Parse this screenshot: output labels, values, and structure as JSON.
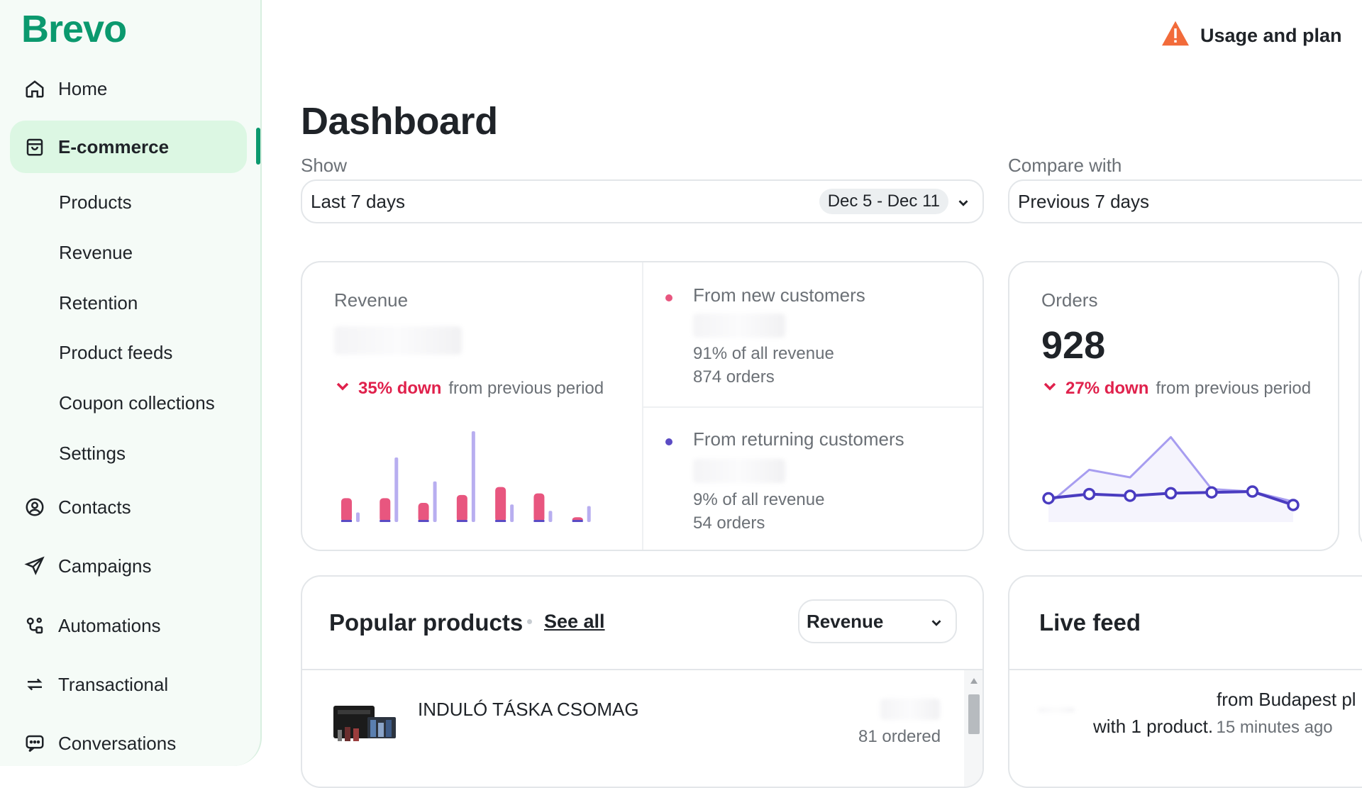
{
  "brand": {
    "logo_text": "Brevo",
    "accent": "#0b996e"
  },
  "sidebar": {
    "items": [
      {
        "label": "Home",
        "icon": "home-icon"
      },
      {
        "label": "E-commerce",
        "icon": "shopping-bag-icon",
        "active": true
      },
      {
        "label": "Contacts",
        "icon": "user-circle-icon"
      },
      {
        "label": "Campaigns",
        "icon": "send-icon"
      },
      {
        "label": "Automations",
        "icon": "automation-icon"
      },
      {
        "label": "Transactional",
        "icon": "swap-arrows-icon"
      },
      {
        "label": "Conversations",
        "icon": "chat-icon"
      }
    ],
    "subitems": [
      "Products",
      "Revenue",
      "Retention",
      "Product feeds",
      "Coupon collections",
      "Settings"
    ]
  },
  "header": {
    "usage_label": "Usage and plan",
    "warning_color": "#f26b3a"
  },
  "page": {
    "title": "Dashboard"
  },
  "filters": {
    "show_label": "Show",
    "show_value": "Last 7 days",
    "date_range": "Dec 5 - Dec 11",
    "compare_label": "Compare with",
    "compare_value": "Previous 7 days"
  },
  "revenue_card": {
    "title": "Revenue",
    "change": "35% down",
    "change_suffix": "from previous period",
    "new_customers": {
      "label": "From new customers",
      "share": "91% of all revenue",
      "orders": "874 orders",
      "color": "#e8567f"
    },
    "returning_customers": {
      "label": "From returning customers",
      "share": "9% of all revenue",
      "orders": "54 orders",
      "color": "#5b4bc4"
    }
  },
  "orders_card": {
    "title": "Orders",
    "value": "928",
    "change": "27% down",
    "change_suffix": "from previous period"
  },
  "chart_data": [
    {
      "type": "bar",
      "categories": [
        "1",
        "2",
        "3",
        "4",
        "5",
        "6",
        "7"
      ],
      "series": [
        {
          "values": [
            30,
            30,
            24,
            34,
            44,
            36,
            6
          ],
          "color": "#e8567f"
        },
        {
          "values": [
            12,
            81,
            51,
            114,
            22,
            14,
            20
          ],
          "color": "#b8aef0"
        }
      ],
      "ylim": [
        0,
        114
      ]
    },
    {
      "type": "line",
      "x": [
        1,
        2,
        3,
        4,
        5,
        6,
        7
      ],
      "series": [
        {
          "values": [
            25,
            30,
            28,
            31,
            32,
            33,
            17
          ],
          "color": "#4a3cc0"
        },
        {
          "values": [
            18,
            59,
            50,
            98,
            36,
            33,
            21
          ],
          "color": "#a79df0"
        }
      ],
      "ylim": [
        0,
        100
      ]
    }
  ],
  "popular_products": {
    "title": "Popular products",
    "see_all": "See all",
    "metric": "Revenue",
    "items": [
      {
        "name": "INDULÓ TÁSKA CSOMAG",
        "ordered": "81 ordered"
      }
    ]
  },
  "live_feed": {
    "title": "Live feed",
    "line1": "from Budapest pl",
    "line2": "with 1 product.",
    "time": "15 minutes ago"
  }
}
